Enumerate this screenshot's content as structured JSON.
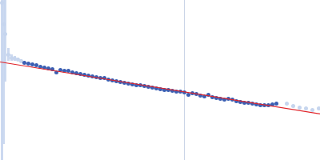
{
  "chart_data": {
    "type": "scatter",
    "xlim": [
      0,
      400
    ],
    "ylim": [
      0,
      200
    ],
    "tick_labels": false,
    "grid": false,
    "vertical_line": 230,
    "series": [
      {
        "type": "scatter",
        "color": "#c6d5ee",
        "marker": "circle",
        "x": [
          2,
          4,
          6,
          10,
          14,
          18,
          22,
          26
        ],
        "values": [
          197,
          170,
          158,
          132,
          128,
          127,
          126,
          124
        ],
        "errors": [
          200,
          150,
          60,
          8,
          4,
          3,
          2,
          2
        ]
      },
      {
        "type": "scatter",
        "color": "#3b5fb3",
        "marker": "circle",
        "x": [
          30,
          35,
          40,
          45,
          50,
          55,
          60,
          65,
          70,
          75,
          80,
          85,
          90,
          95,
          100,
          105,
          110,
          115,
          120,
          125,
          130,
          135,
          140,
          145,
          150,
          155,
          160,
          165,
          170,
          175,
          180,
          185,
          190,
          195,
          200,
          205,
          210,
          215,
          220,
          225,
          230,
          235,
          240,
          245,
          250,
          255,
          260,
          265,
          270,
          275,
          280,
          285,
          290,
          295,
          300,
          305,
          310,
          315,
          320,
          325,
          330,
          335,
          340,
          345
        ],
        "values": [
          122,
          121,
          120,
          119,
          117,
          116,
          115,
          114,
          110,
          113,
          112,
          112,
          110,
          109,
          108,
          107,
          106,
          105,
          104,
          103,
          103,
          101,
          100,
          99,
          98,
          97,
          96,
          95,
          94,
          94,
          93,
          92,
          91,
          90,
          89,
          88,
          88,
          87,
          86,
          86,
          85,
          82,
          84,
          83,
          81,
          80,
          82,
          79,
          78,
          77,
          76,
          77,
          76,
          74,
          73,
          72,
          72,
          71,
          70,
          69,
          69,
          69,
          70,
          71
        ]
      },
      {
        "type": "scatter",
        "color": "#c6d5ee",
        "marker": "circle",
        "x": [
          358,
          366,
          374,
          382,
          390,
          398
        ],
        "values": [
          71,
          68,
          66,
          65,
          63,
          65
        ]
      },
      {
        "type": "line",
        "color": "#e0242a",
        "line_style": "solid",
        "x": [
          0,
          400
        ],
        "values": [
          123,
          58
        ]
      }
    ]
  }
}
